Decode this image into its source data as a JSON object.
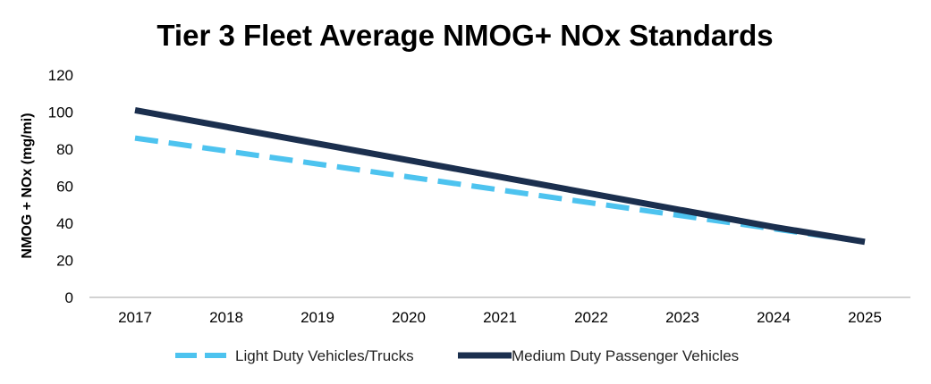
{
  "chart_data": {
    "type": "line",
    "title": "Tier 3 Fleet Average NMOG+ NOx Standards",
    "ylabel": "NMOG + NOx (mg/mi)",
    "xlabel": "",
    "x": [
      "2017",
      "2018",
      "2019",
      "2020",
      "2021",
      "2022",
      "2023",
      "2024",
      "2025"
    ],
    "ylim": [
      0,
      120
    ],
    "yticks": [
      0,
      20,
      40,
      60,
      80,
      100,
      120
    ],
    "grid": false,
    "legend_position": "bottom",
    "series": [
      {
        "name": "Light Duty Vehicles/Trucks",
        "values": [
          86,
          79,
          72,
          65,
          58,
          51,
          44,
          37,
          30
        ],
        "color": "#4dc3ef",
        "style": "dashed"
      },
      {
        "name": "Medium Duty Passenger Vehicles",
        "values": [
          101,
          92,
          83,
          74,
          65,
          56,
          47,
          38,
          30
        ],
        "color": "#1b2f4e",
        "style": "solid"
      }
    ]
  }
}
